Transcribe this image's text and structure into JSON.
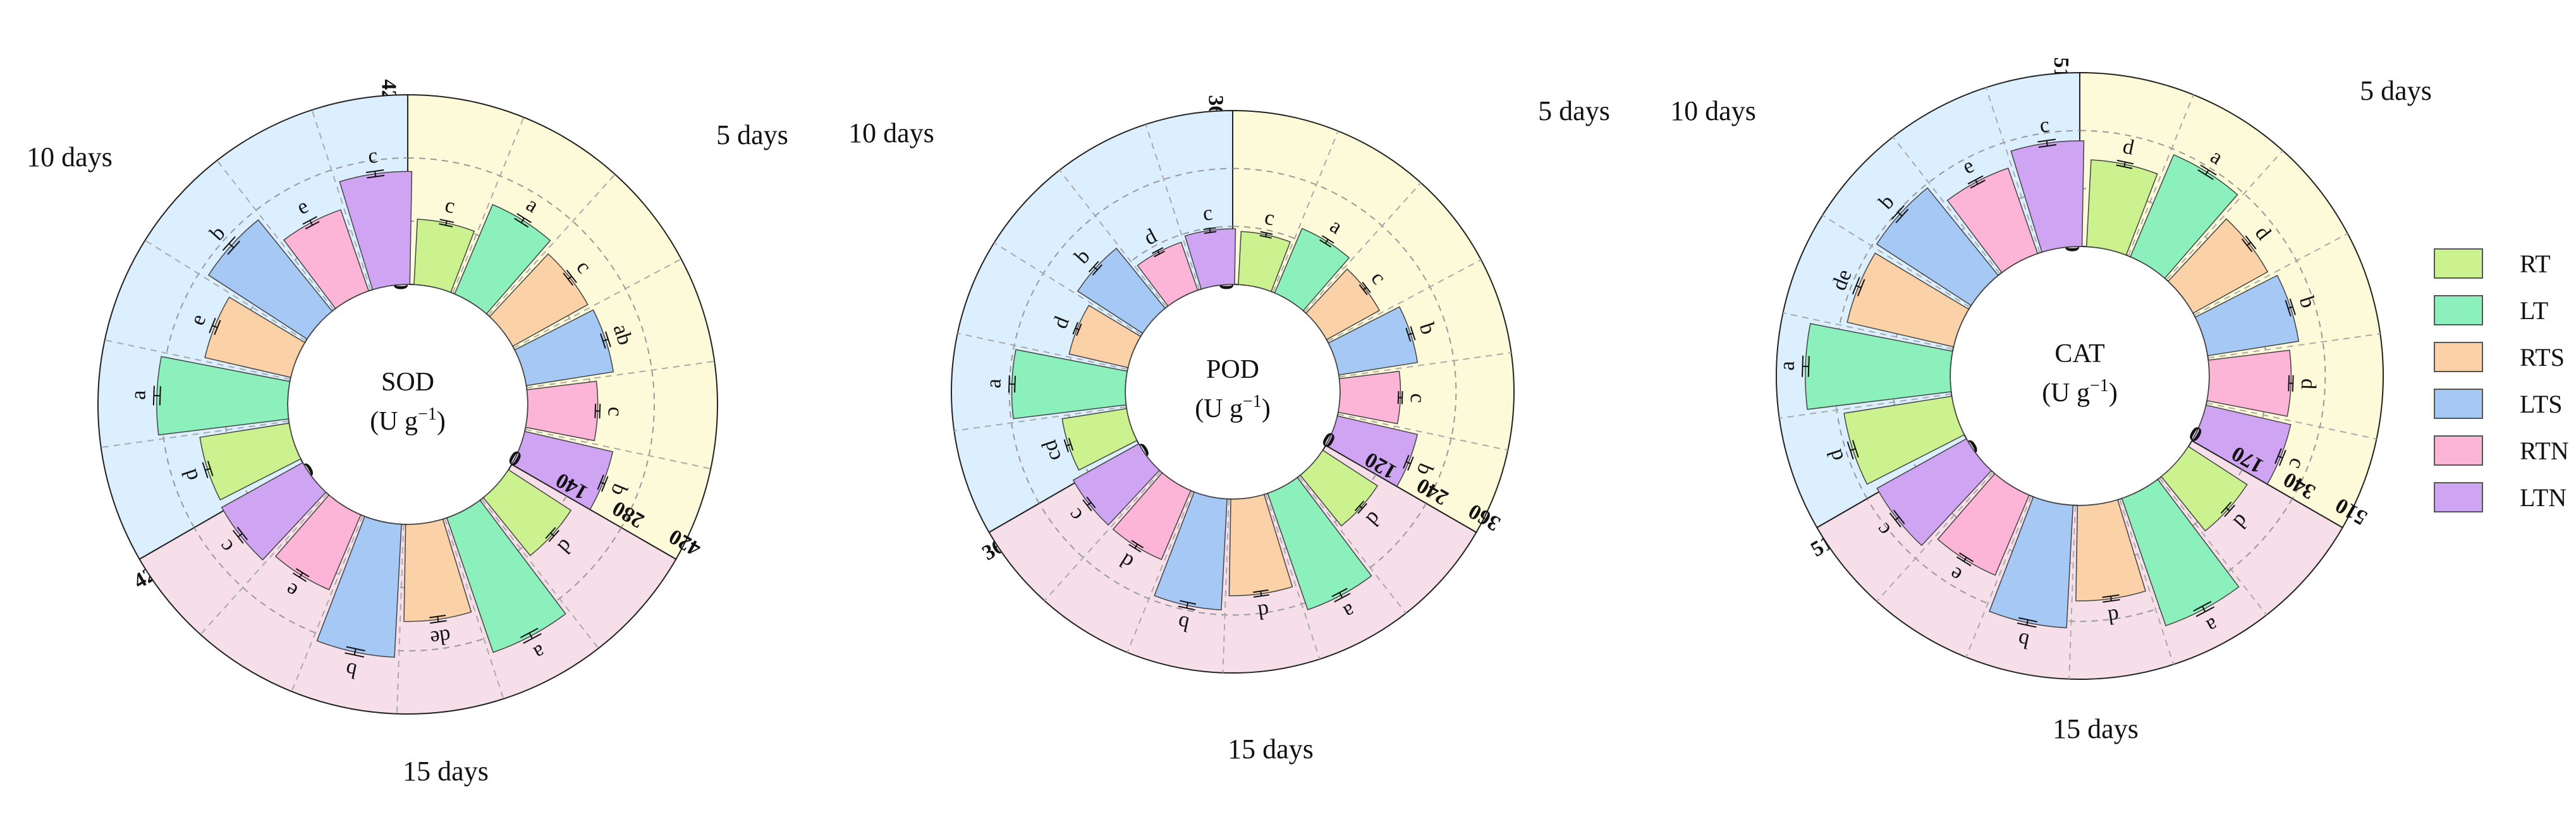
{
  "colors": {
    "RT": "#ccf28f",
    "LT": "#8cf0bc",
    "RTS": "#fbd1a8",
    "LTS": "#a5c8f5",
    "RTN": "#fcb5d6",
    "LTN": "#cfa5f3",
    "sector_5": "#fcfad8",
    "sector_10": "#dcefff",
    "sector_15": "#f6dfe9"
  },
  "legend": [
    "RT",
    "LT",
    "RTS",
    "LTS",
    "RTN",
    "LTN"
  ],
  "chart_data": [
    {
      "type": "bar",
      "center_label": [
        "SOD",
        "(U g",
        "−1",
        ")"
      ],
      "max": 420,
      "ticks": [
        "0",
        "140",
        "280",
        "420"
      ],
      "sectors": [
        {
          "label": "5 days",
          "values": [
            145,
            215,
            190,
            195,
            155,
            200
          ],
          "errors": [
            5,
            6,
            5,
            6,
            5,
            5
          ],
          "letters": [
            "c",
            "a",
            "c",
            "ab",
            "c",
            "b"
          ]
        },
        {
          "label": "10 days",
          "values": [
            200,
            290,
            195,
            260,
            190,
            250
          ],
          "errors": [
            6,
            7,
            6,
            7,
            6,
            6
          ],
          "letters": [
            "d",
            "a",
            "e",
            "b",
            "e",
            "c"
          ]
        },
        {
          "label": "15 days",
          "values": [
            165,
            315,
            215,
            295,
            180,
            205
          ],
          "errors": [
            5,
            7,
            6,
            7,
            6,
            6
          ],
          "letters": [
            "d",
            "a",
            "de",
            "b",
            "e",
            "c"
          ]
        }
      ]
    },
    {
      "type": "bar",
      "center_label": [
        "POD",
        "(U g",
        "−1",
        ")"
      ],
      "max": 360,
      "ticks": [
        "0",
        "120",
        "240",
        "360"
      ],
      "sectors": [
        {
          "label": "5 days",
          "values": [
            110,
            145,
            125,
            165,
            125,
            170
          ],
          "errors": [
            4,
            5,
            4,
            5,
            4,
            5
          ],
          "letters": [
            "c",
            "a",
            "c",
            "b",
            "c",
            "b"
          ]
        },
        {
          "label": "10 days",
          "values": [
            135,
            235,
            125,
            160,
            105,
            115
          ],
          "errors": [
            5,
            6,
            4,
            5,
            4,
            4
          ],
          "letters": [
            "cd",
            "a",
            "d",
            "b",
            "d",
            "c"
          ]
        },
        {
          "label": "15 days",
          "values": [
            135,
            255,
            200,
            230,
            155,
            155
          ],
          "errors": [
            4,
            6,
            5,
            6,
            5,
            5
          ],
          "letters": [
            "d",
            "a",
            "d",
            "b",
            "d",
            "c"
          ]
        }
      ]
    },
    {
      "type": "bar",
      "center_label": [
        "CAT",
        "(U g",
        "−1",
        ")"
      ],
      "max": 510,
      "ticks": [
        "0",
        "170",
        "340",
        "510"
      ],
      "sectors": [
        {
          "label": "5 days",
          "values": [
            255,
            325,
            250,
            270,
            240,
            255
          ],
          "errors": [
            7,
            8,
            7,
            7,
            6,
            7
          ],
          "letters": [
            "d",
            "a",
            "d",
            "b",
            "d",
            "c"
          ]
        },
        {
          "label": "10 days",
          "values": [
            320,
            425,
            320,
            330,
            265,
            310
          ],
          "errors": [
            8,
            9,
            8,
            8,
            7,
            8
          ],
          "letters": [
            "d",
            "a",
            "de",
            "b",
            "e",
            "c"
          ]
        },
        {
          "label": "15 days",
          "values": [
            205,
            395,
            280,
            360,
            255,
            300
          ],
          "errors": [
            7,
            9,
            7,
            8,
            7,
            7
          ],
          "letters": [
            "d",
            "a",
            "d",
            "b",
            "e",
            "c"
          ]
        }
      ]
    }
  ]
}
